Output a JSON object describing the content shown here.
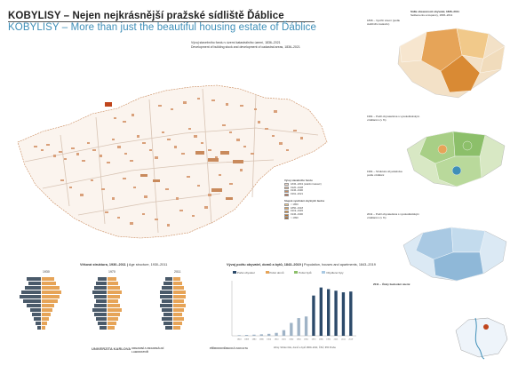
{
  "titles": {
    "cz": "KOBYLISY – Nejen nejkrásnější pražské sídliště Ďáblice",
    "en": "KOBYLISY – More than just the beautiful housing estate of Ďáblice"
  },
  "main_map": {
    "caption_cz": "Vývoj stavebního fondu v území katastrálního území, 1836–2021",
    "caption_en": "Development of building stock and development of cadastral areas, 1836–2021"
  },
  "legend": {
    "title": "Vývoj stavebního fondu",
    "items": [
      {
        "label": "1836–1843 (stabilní katastr)",
        "color": "#f4dccc"
      },
      {
        "label": "1920–1938",
        "color": "#e0b89a"
      },
      {
        "label": "1946–1990",
        "color": "#c98a5c"
      },
      {
        "label": "1991–2021",
        "color": "#b8633c"
      }
    ],
    "second_title": "Stupně využívání obytných budov",
    "second_items": [
      {
        "label": "< 1850",
        "color": "#f1c98a"
      },
      {
        "label": "1850–1918",
        "color": "#e6a458"
      },
      {
        "label": "1919–1945",
        "color": "#d98a34"
      },
      {
        "label": "1946–1990",
        "color": "#c06e1c"
      },
      {
        "label": "> 1990",
        "color": "#9c5210"
      }
    ]
  },
  "right_panel": {
    "caption_top_cz": "Sídla obsazenosti obyvatel, 1836–2011",
    "caption_top_en": "Settlements occupancy, 1836–2011",
    "map1_label": "1836 – Využití území (podle stabilního katastru)",
    "map2_label": "1991 – Podíl obyvatelstva s vysokoškolským vzděláním (v %)",
    "map3_label": "1991 – Struktura obyvatelstva podle vzdělání",
    "map4_label": "2011 – Podíl obyvatelstva s vysokoškolským vzděláním (v %)",
    "map5_label": "2011 – Účely budování území"
  },
  "bottom": {
    "age_title": "Věková struktura, 1930–2011",
    "age_subtitle": "Age structure, 1930–2011",
    "pyramid_years": [
      "1930",
      "1970",
      "2011"
    ],
    "pop_title": "Vývoj počtu obyvatel, domů a bytů, 1843–2019",
    "pop_subtitle": "Population, houses and apartments, 1843–2019",
    "pop_legend": [
      "Počet obyvatel",
      "Počet domů",
      "Počet bytů",
      "Obydlené byty"
    ]
  },
  "chart_data": {
    "type": "bar",
    "categories": [
      "1843",
      "1869",
      "1880",
      "1890",
      "1900",
      "1910",
      "1921",
      "1930",
      "1950",
      "1961",
      "1970",
      "1980",
      "1991",
      "2001",
      "2011",
      "2019"
    ],
    "series": [
      {
        "name": "Počet obyvatel",
        "values": [
          400,
          550,
          700,
          900,
          1200,
          1800,
          3500,
          8000,
          11000,
          12000,
          25000,
          30000,
          29000,
          28000,
          27000,
          27500
        ]
      }
    ]
  },
  "footer": {
    "logos": [
      "UNIVERZITA KARLOVA",
      "URBANNÍ A REGIONÁLNÍ LABORATOŘ",
      "PŘÍRODOVĚDECKÁ FAKULTA"
    ],
    "notes": "Zdroj: Sčítání lidu, domů a bytů 1869–2011; ČSÚ; IPR Praha"
  },
  "colors": {
    "title_en": "#3f8fb8",
    "orange": "#e6a458",
    "green": "#8cbf6a",
    "blue": "#a9c9e3"
  }
}
